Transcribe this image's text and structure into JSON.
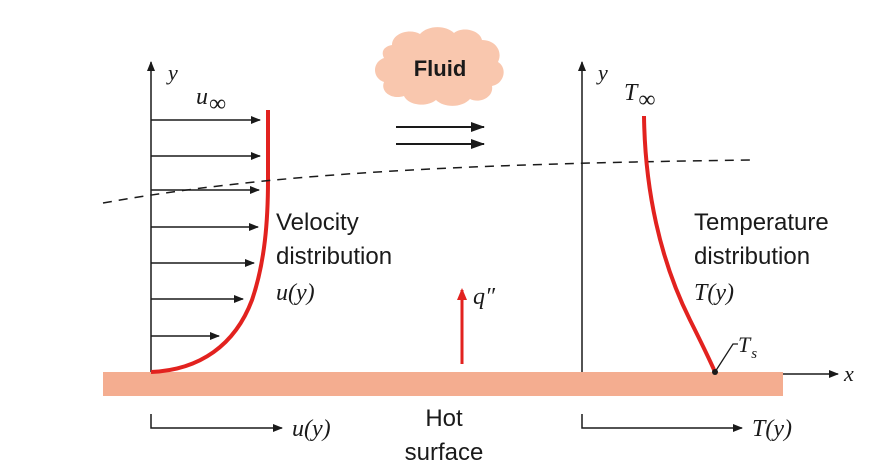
{
  "fluid_label": "Fluid",
  "velocity": {
    "axis_y": "y",
    "freestream": "u",
    "freestream_sub": "∞",
    "label_line1": "Velocity",
    "label_line2": "distribution",
    "label_line3": "u(y)",
    "axis_bottom": "u(y)"
  },
  "temperature": {
    "axis_y": "y",
    "freestream": "T",
    "freestream_sub": "∞",
    "label_line1": "Temperature",
    "label_line2": "distribution",
    "label_line3": "T(y)",
    "surface_temp": "T",
    "surface_temp_sub": "s",
    "axis_bottom": "T(y)"
  },
  "heat_flux": "q″",
  "surface_line1": "Hot",
  "surface_line2": "surface",
  "x_axis": "x",
  "colors": {
    "surface": "#f4ad90",
    "profile": "#e2221f",
    "cloud": "#f9c7ae",
    "ink": "#1a1a1a"
  }
}
